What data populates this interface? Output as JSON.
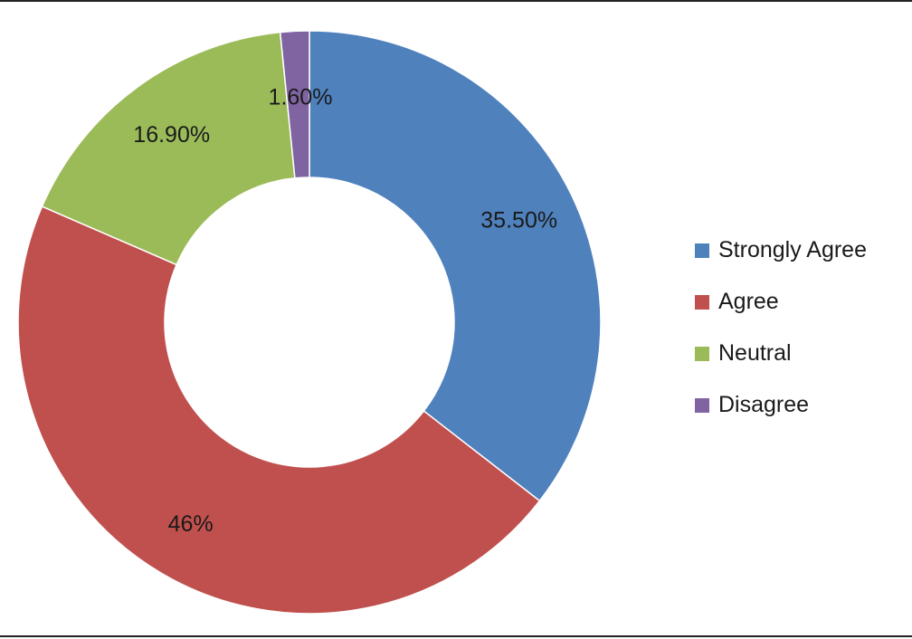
{
  "chart_data": {
    "type": "pie",
    "variant": "donut",
    "title": "",
    "series": [
      {
        "name": "Strongly Agree",
        "value": 35.5,
        "label": "35.50%",
        "color": "#4F81BD"
      },
      {
        "name": "Agree",
        "value": 46,
        "label": "46%",
        "color": "#C0504D"
      },
      {
        "name": "Neutral",
        "value": 16.9,
        "label": "16.90%",
        "color": "#9BBB59"
      },
      {
        "name": "Disagree",
        "value": 1.6,
        "label": "1.60%",
        "color": "#8064A2"
      }
    ],
    "legend_position": "right",
    "start_angle": "top",
    "direction": "clockwise"
  }
}
